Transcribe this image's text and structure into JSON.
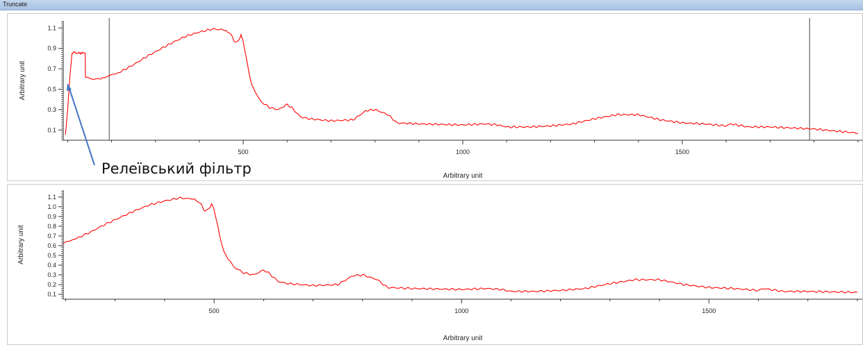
{
  "window": {
    "title": "Truncate"
  },
  "annotation": {
    "text": "Релеївський фільтр",
    "color": "#4472c4"
  },
  "colors": {
    "series": "#ff0000",
    "marker": "#808080",
    "axis": "#333333"
  },
  "chart_data": [
    {
      "type": "line",
      "title": "",
      "xlabel": "Arbitrary unit",
      "ylabel": "Arbitrary unit",
      "xlim": [
        90,
        1910
      ],
      "ylim": [
        0,
        1.17
      ],
      "x_ticks": [
        500,
        1000,
        1500
      ],
      "y_ticks": [
        0.1,
        0.3,
        0.5,
        0.7,
        0.9,
        1.1
      ],
      "vertical_markers": [
        195,
        1790
      ],
      "grid": false,
      "series": [
        {
          "x": [
            95,
            100,
            105,
            110,
            115,
            120,
            125,
            130,
            135,
            140,
            140.5,
            150,
            160,
            170,
            180,
            195,
            220,
            250,
            280,
            310,
            340,
            370,
            400,
            430,
            460,
            475,
            480,
            490,
            495,
            500,
            510,
            520,
            540,
            560,
            580,
            600,
            610,
            630,
            650,
            700,
            750,
            780,
            800,
            830,
            850,
            900,
            1000,
            1050,
            1080,
            1100,
            1150,
            1200,
            1250,
            1300,
            1350,
            1400,
            1450,
            1500,
            1550,
            1600,
            1610,
            1650,
            1700,
            1800,
            1900
          ],
          "y": [
            0.05,
            0.3,
            0.62,
            0.85,
            0.87,
            0.85,
            0.86,
            0.85,
            0.86,
            0.85,
            0.62,
            0.6,
            0.6,
            0.6,
            0.61,
            0.63,
            0.67,
            0.74,
            0.82,
            0.89,
            0.96,
            1.02,
            1.06,
            1.09,
            1.08,
            1.02,
            0.96,
            0.98,
            1.03,
            0.97,
            0.73,
            0.53,
            0.38,
            0.32,
            0.3,
            0.35,
            0.32,
            0.23,
            0.21,
            0.19,
            0.2,
            0.29,
            0.3,
            0.25,
            0.17,
            0.16,
            0.15,
            0.16,
            0.15,
            0.13,
            0.13,
            0.14,
            0.16,
            0.21,
            0.25,
            0.25,
            0.2,
            0.17,
            0.16,
            0.14,
            0.16,
            0.13,
            0.13,
            0.11,
            0.07
          ]
        }
      ]
    },
    {
      "type": "line",
      "title": "",
      "xlabel": "Arbitrary unit",
      "ylabel": "Arbitrary unit",
      "xlim": [
        195,
        1810
      ],
      "ylim": [
        0.05,
        1.17
      ],
      "x_ticks": [
        500,
        1000,
        1500
      ],
      "y_ticks": [
        0.1,
        0.2,
        0.3,
        0.4,
        0.5,
        0.6,
        0.7,
        0.8,
        0.9,
        1.0,
        1.1
      ],
      "grid": false,
      "series": [
        {
          "x": [
            195,
            220,
            250,
            280,
            310,
            340,
            370,
            400,
            430,
            460,
            475,
            480,
            490,
            495,
            500,
            510,
            520,
            540,
            560,
            580,
            600,
            610,
            630,
            650,
            700,
            750,
            780,
            800,
            830,
            850,
            900,
            1000,
            1050,
            1080,
            1100,
            1150,
            1200,
            1250,
            1300,
            1350,
            1400,
            1450,
            1500,
            1550,
            1600,
            1610,
            1650,
            1700,
            1800
          ],
          "y": [
            0.62,
            0.67,
            0.74,
            0.82,
            0.89,
            0.96,
            1.02,
            1.06,
            1.09,
            1.08,
            1.02,
            0.96,
            0.98,
            1.03,
            0.97,
            0.73,
            0.53,
            0.38,
            0.32,
            0.3,
            0.35,
            0.32,
            0.23,
            0.21,
            0.19,
            0.2,
            0.29,
            0.3,
            0.25,
            0.17,
            0.16,
            0.15,
            0.16,
            0.15,
            0.13,
            0.13,
            0.14,
            0.16,
            0.21,
            0.25,
            0.25,
            0.2,
            0.17,
            0.16,
            0.14,
            0.16,
            0.13,
            0.13,
            0.12
          ]
        }
      ]
    }
  ]
}
